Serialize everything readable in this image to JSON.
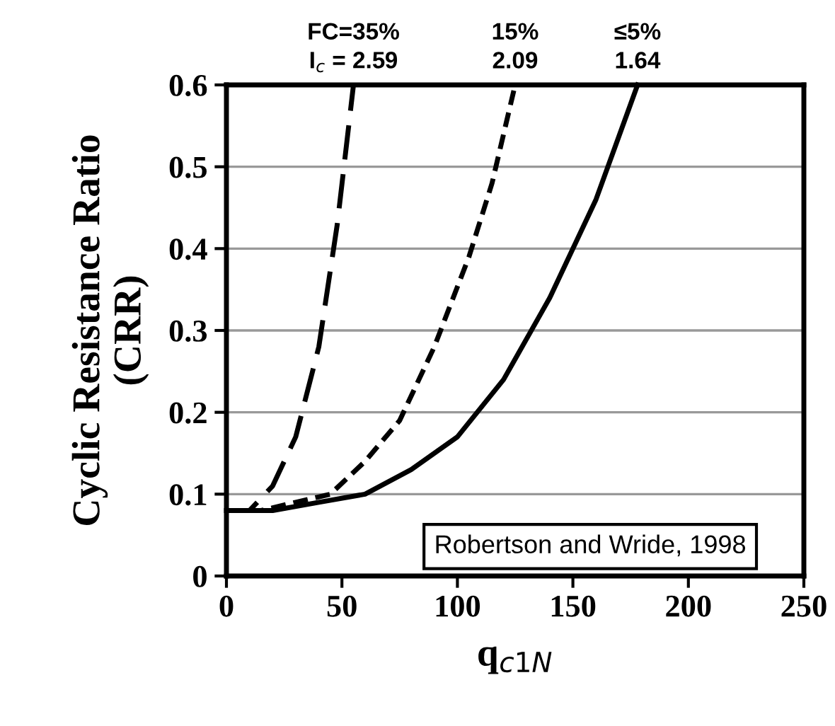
{
  "chart_data": {
    "type": "line",
    "xlabel": "q$_{c1N}$",
    "ylabel": "Cyclic Resistance Ratio\n(CRR)",
    "xlim": [
      0,
      250
    ],
    "xticks": [
      0,
      50,
      100,
      150,
      200,
      250
    ],
    "ylim": [
      0,
      0.6
    ],
    "yticks": [
      0,
      0.1,
      0.2,
      0.3,
      0.4,
      0.5,
      0.6
    ],
    "grid": "y",
    "marker": "none",
    "series": [
      {
        "color": "#000000",
        "line_style": "dashed",
        "x": [
          0,
          10,
          20,
          30,
          40,
          48,
          55
        ],
        "values": [
          0.08,
          0.08,
          0.11,
          0.17,
          0.28,
          0.43,
          0.6
        ]
      },
      {
        "color": "#000000",
        "line_style": "dotted",
        "x": [
          0,
          15,
          30,
          45,
          60,
          75,
          90,
          105,
          115,
          125
        ],
        "values": [
          0.08,
          0.08,
          0.09,
          0.1,
          0.14,
          0.19,
          0.28,
          0.39,
          0.48,
          0.6
        ]
      },
      {
        "color": "#000000",
        "line_style": "solid",
        "x": [
          0,
          20,
          40,
          60,
          80,
          100,
          120,
          140,
          160,
          178
        ],
        "values": [
          0.08,
          0.08,
          0.09,
          0.1,
          0.13,
          0.17,
          0.24,
          0.34,
          0.46,
          0.6
        ]
      }
    ],
    "annotations": [
      {
        "text": "FC=35%\nI$_{c}$ = 2.59",
        "x": 55,
        "y": 0.6
      },
      {
        "text": "15%\n2.09",
        "x": 125,
        "y": 0.6
      },
      {
        "text": "≤5%\n1.64",
        "x": 178,
        "y": 0.6
      },
      "Robertson and Wride, 1998"
    ]
  }
}
